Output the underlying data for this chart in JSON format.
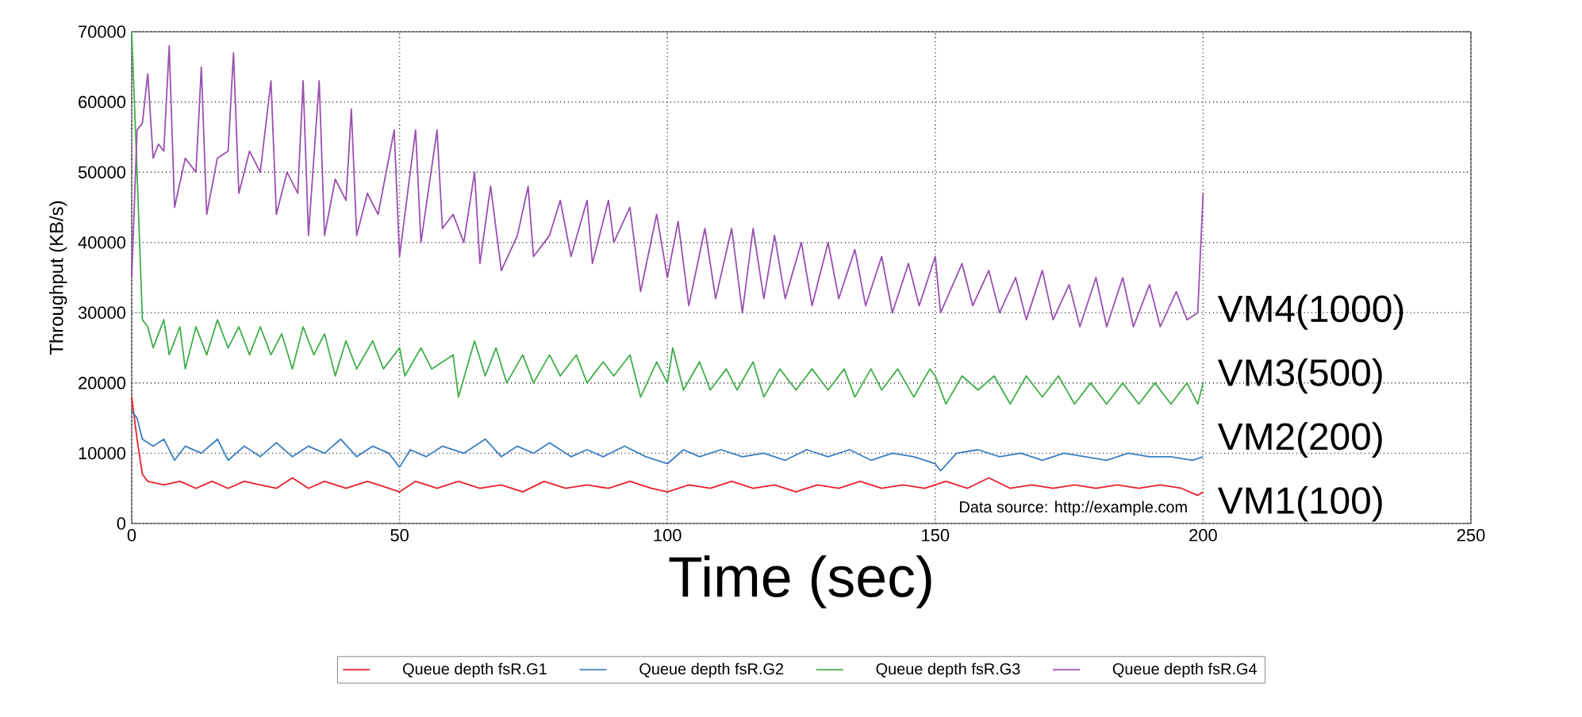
{
  "chart_data": {
    "type": "line",
    "xlabel": "Time (sec)",
    "ylabel": "Throughput (KB/s)",
    "xlim": [
      0,
      250
    ],
    "xticks": [
      0,
      50,
      100,
      150,
      200,
      250
    ],
    "ylim": [
      0,
      70000
    ],
    "yticks": [
      0,
      10000,
      20000,
      30000,
      40000,
      50000,
      60000,
      70000
    ],
    "grid": true,
    "legend": "bottom",
    "marker": "none",
    "series": [
      {
        "name": "Queue depth fsR.G1",
        "color": "#e8202a",
        "x": [
          0,
          1,
          2,
          3,
          6,
          9,
          12,
          15,
          18,
          21,
          24,
          27,
          30,
          33,
          36,
          40,
          44,
          48,
          50,
          53,
          57,
          61,
          65,
          69,
          73,
          77,
          81,
          85,
          89,
          93,
          97,
          100,
          104,
          108,
          112,
          116,
          120,
          124,
          128,
          132,
          136,
          140,
          144,
          148,
          152,
          156,
          160,
          164,
          168,
          172,
          176,
          180,
          184,
          188,
          192,
          196,
          199,
          200
        ],
        "values": [
          18000,
          12000,
          7000,
          6000,
          5500,
          6000,
          5000,
          6000,
          5000,
          6000,
          5500,
          5000,
          6500,
          5000,
          6000,
          5000,
          6000,
          5000,
          4500,
          6000,
          5000,
          6000,
          5000,
          5500,
          4500,
          6000,
          5000,
          5500,
          5000,
          6000,
          5000,
          4500,
          5500,
          5000,
          6000,
          5000,
          5500,
          4500,
          5500,
          5000,
          6000,
          5000,
          5500,
          5000,
          6000,
          5000,
          6500,
          5000,
          5500,
          5000,
          5500,
          5000,
          5500,
          5000,
          5500,
          5000,
          4000,
          4500
        ]
      },
      {
        "name": "Queue depth fsR.G2",
        "color": "#3a7fc1",
        "x": [
          0,
          1,
          2,
          4,
          6,
          8,
          10,
          13,
          16,
          18,
          21,
          24,
          27,
          30,
          33,
          36,
          39,
          42,
          45,
          48,
          50,
          52,
          55,
          58,
          62,
          66,
          69,
          72,
          75,
          78,
          82,
          85,
          88,
          92,
          96,
          100,
          103,
          106,
          110,
          114,
          118,
          122,
          126,
          130,
          134,
          138,
          142,
          146,
          150,
          151,
          154,
          158,
          162,
          166,
          170,
          174,
          178,
          182,
          186,
          190,
          194,
          198,
          200
        ],
        "values": [
          16000,
          15000,
          12000,
          11000,
          12000,
          9000,
          11000,
          10000,
          12000,
          9000,
          11000,
          9500,
          11500,
          9500,
          11000,
          10000,
          12000,
          9500,
          11000,
          10000,
          8000,
          10500,
          9500,
          11000,
          10000,
          12000,
          9500,
          11000,
          10000,
          11500,
          9500,
          10500,
          9500,
          11000,
          9500,
          8500,
          10500,
          9500,
          10500,
          9500,
          10000,
          9000,
          10500,
          9500,
          10500,
          9000,
          10000,
          9500,
          8500,
          7500,
          10000,
          10500,
          9500,
          10000,
          9000,
          10000,
          9500,
          9000,
          10000,
          9500,
          9500,
          9000,
          9500
        ]
      },
      {
        "name": "Queue depth fsR.G3",
        "color": "#3fae49",
        "x": [
          0,
          1,
          2,
          3,
          4,
          6,
          7,
          9,
          10,
          12,
          14,
          16,
          18,
          20,
          22,
          24,
          26,
          28,
          30,
          32,
          34,
          36,
          38,
          40,
          42,
          45,
          47,
          50,
          51,
          54,
          56,
          60,
          61,
          64,
          66,
          68,
          70,
          73,
          75,
          78,
          80,
          83,
          85,
          88,
          90,
          93,
          95,
          98,
          100,
          101,
          103,
          106,
          108,
          111,
          113,
          116,
          118,
          121,
          124,
          127,
          130,
          133,
          135,
          138,
          140,
          143,
          146,
          149,
          150,
          152,
          155,
          158,
          161,
          164,
          167,
          170,
          173,
          176,
          179,
          182,
          185,
          188,
          191,
          194,
          197,
          199,
          200
        ],
        "values": [
          70000,
          50000,
          29000,
          28000,
          25000,
          29000,
          24000,
          28000,
          22000,
          28000,
          24000,
          29000,
          25000,
          28000,
          24000,
          28000,
          24000,
          27000,
          22000,
          28000,
          24000,
          27000,
          21000,
          26000,
          22000,
          26000,
          22000,
          25000,
          21000,
          25000,
          22000,
          24000,
          18000,
          26000,
          21000,
          25000,
          20000,
          24000,
          20000,
          24000,
          21000,
          24000,
          20000,
          23000,
          21000,
          24000,
          18000,
          23000,
          20000,
          25000,
          19000,
          23000,
          19000,
          22000,
          19000,
          23000,
          18000,
          22000,
          19000,
          22000,
          19000,
          22000,
          18000,
          22000,
          19000,
          22000,
          18000,
          22000,
          21000,
          17000,
          21000,
          19000,
          21000,
          17000,
          21000,
          18000,
          21000,
          17000,
          20000,
          17000,
          20000,
          17000,
          20000,
          17000,
          20000,
          17000,
          20000
        ]
      },
      {
        "name": "Queue depth fsR.G4",
        "color": "#9b4fb0",
        "x": [
          0,
          1,
          2,
          3,
          4,
          5,
          6,
          7,
          8,
          10,
          12,
          13,
          14,
          16,
          18,
          19,
          20,
          22,
          24,
          26,
          27,
          29,
          31,
          32,
          33,
          35,
          36,
          38,
          40,
          41,
          42,
          44,
          46,
          49,
          50,
          53,
          54,
          57,
          58,
          60,
          62,
          64,
          65,
          67,
          69,
          72,
          74,
          75,
          78,
          80,
          82,
          85,
          86,
          89,
          90,
          93,
          95,
          98,
          100,
          102,
          104,
          107,
          109,
          112,
          114,
          116,
          118,
          120,
          122,
          125,
          127,
          130,
          132,
          135,
          137,
          140,
          142,
          145,
          147,
          150,
          151,
          155,
          157,
          160,
          162,
          165,
          167,
          170,
          172,
          175,
          177,
          180,
          182,
          185,
          187,
          190,
          192,
          195,
          197,
          199,
          200
        ],
        "values": [
          35000,
          56000,
          57000,
          64000,
          52000,
          54000,
          53000,
          68000,
          45000,
          52000,
          50000,
          65000,
          44000,
          52000,
          53000,
          67000,
          47000,
          53000,
          50000,
          63000,
          44000,
          50000,
          47000,
          63000,
          41000,
          63000,
          41000,
          49000,
          46000,
          59000,
          41000,
          47000,
          44000,
          56000,
          38000,
          56000,
          40000,
          56000,
          42000,
          44000,
          40000,
          50000,
          37000,
          48000,
          36000,
          41000,
          48000,
          38000,
          41000,
          46000,
          38000,
          46000,
          37000,
          46000,
          40000,
          45000,
          33000,
          44000,
          35000,
          43000,
          31000,
          42000,
          32000,
          42000,
          30000,
          42000,
          32000,
          41000,
          32000,
          40000,
          31000,
          40000,
          32000,
          39000,
          31000,
          38000,
          30000,
          37000,
          31000,
          38000,
          30000,
          37000,
          31000,
          36000,
          30000,
          35000,
          29000,
          36000,
          29000,
          34000,
          28000,
          35000,
          28000,
          35000,
          28000,
          34000,
          28000,
          33000,
          29000,
          30000,
          47000
        ]
      }
    ],
    "annotations": [
      "VM4(1000)",
      "VM3(500)",
      "VM2(200)",
      "VM1(100)",
      "Data source: http://example.com"
    ]
  }
}
